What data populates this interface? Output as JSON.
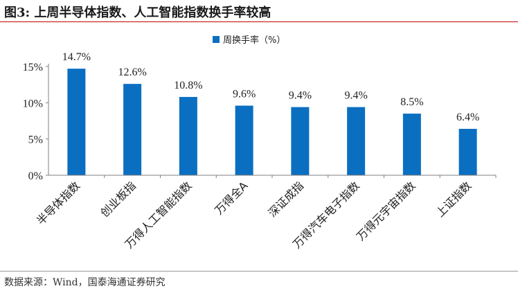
{
  "figure": {
    "title": "图3:  上周半导体指数、人工智能指数换手率较高",
    "source": "数据来源：Wind，国泰海通证券研究"
  },
  "chart_data": {
    "type": "bar",
    "categories": [
      "半导体指数",
      "创业板指",
      "万得人工智能指数",
      "万得全A",
      "深证成指",
      "万得汽车电子指数",
      "万得元宇宙指数",
      "上证指数"
    ],
    "series": [
      {
        "name": "周换手率（%）",
        "values": [
          14.7,
          12.6,
          10.8,
          9.6,
          9.4,
          9.4,
          8.5,
          6.4
        ],
        "labels": [
          "14.7%",
          "12.6%",
          "10.8%",
          "9.6%",
          "9.4%",
          "9.4%",
          "8.5%",
          "6.4%"
        ]
      }
    ],
    "ylim": [
      0,
      15
    ],
    "yticks": [
      0,
      5,
      10,
      15
    ],
    "ytick_labels": [
      "0%",
      "5%",
      "10%",
      "15%"
    ],
    "grid": false,
    "legend_position": "top-center",
    "colors": {
      "bar": "#0b6fc1",
      "axis": "#7f7f7f",
      "text": "#222222"
    }
  }
}
